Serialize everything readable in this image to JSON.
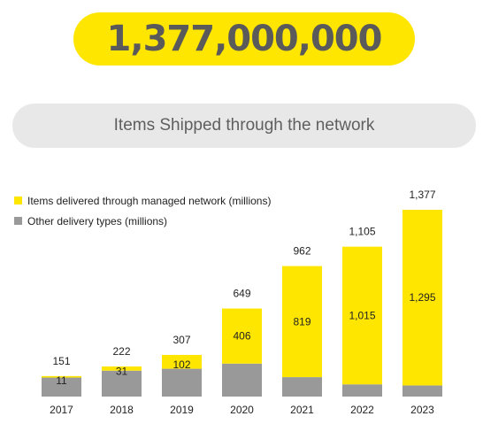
{
  "headline": "1,377,000,000",
  "subtitle": "Items Shipped through the network",
  "colors": {
    "managed": "#ffe600",
    "other": "#999999",
    "headline_bg": "#ffe600",
    "subtitle_bg": "#e8e8e8"
  },
  "chart_data": {
    "type": "bar",
    "stacked": true,
    "categories": [
      "2017",
      "2018",
      "2019",
      "2020",
      "2021",
      "2022",
      "2023"
    ],
    "series": [
      {
        "name": "Other delivery types (millions)",
        "values": [
          140,
          191,
          205,
          243,
          143,
          90,
          82
        ]
      },
      {
        "name": "Items delivered through managed network (millions)",
        "values": [
          11,
          31,
          102,
          406,
          819,
          1015,
          1295
        ]
      }
    ],
    "value_labels": [
      "11",
      "31",
      "102",
      "406",
      "819",
      "1,015",
      "1,295"
    ],
    "total_labels": [
      "151",
      "222",
      "307",
      "649",
      "962",
      "1,105",
      "1,377"
    ],
    "totals": [
      151,
      222,
      307,
      649,
      962,
      1105,
      1377
    ],
    "legend_position": "top-left",
    "grid": false,
    "ylim": [
      0,
      1377
    ]
  }
}
